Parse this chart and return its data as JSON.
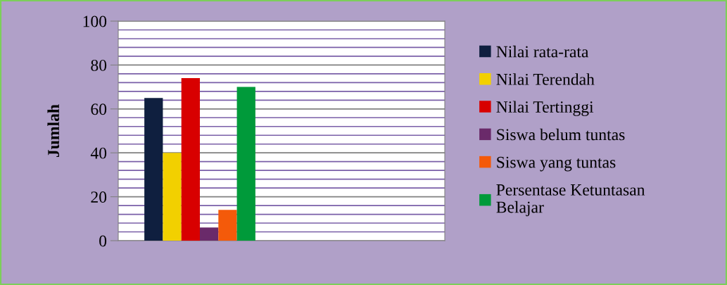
{
  "chart_data": {
    "type": "bar",
    "ylabel": "Jumlah",
    "categories": [
      null
    ],
    "series": [
      {
        "name": "Nilai rata-rata",
        "color": "#0f1f3f",
        "values": [
          65
        ]
      },
      {
        "name": "Nilai Terendah",
        "color": "#f2d000",
        "values": [
          40
        ]
      },
      {
        "name": "Nilai Tertinggi",
        "color": "#d80000",
        "values": [
          74
        ]
      },
      {
        "name": "Siswa belum tuntas",
        "color": "#6a2a6a",
        "values": [
          6
        ]
      },
      {
        "name": "Siswa yang tuntas",
        "color": "#f45a0a",
        "values": [
          14
        ]
      },
      {
        "name": "Persentase Ketuntasan\nBelajar",
        "color": "#009a3a",
        "values": [
          70
        ]
      }
    ],
    "ylim": [
      0,
      100
    ],
    "yticks": [
      0,
      {
        "value": 4,
        "label": null
      },
      {
        "value": 8,
        "label": null
      },
      {
        "value": 12,
        "label": null
      },
      {
        "value": 16,
        "label": null
      },
      20,
      {
        "value": 24,
        "label": null
      },
      {
        "value": 28,
        "label": null
      },
      {
        "value": 32,
        "label": null
      },
      {
        "value": 36,
        "label": null
      },
      40,
      {
        "value": 44,
        "label": null
      },
      {
        "value": 48,
        "label": null
      },
      {
        "value": 52,
        "label": null
      },
      {
        "value": 56,
        "label": null
      },
      60,
      {
        "value": 64,
        "label": null
      },
      {
        "value": 68,
        "label": null
      },
      {
        "value": 72,
        "label": null
      },
      {
        "value": 76,
        "label": null
      },
      80,
      {
        "value": 84,
        "label": null
      },
      {
        "value": 88,
        "label": null
      },
      {
        "value": 92,
        "label": null
      },
      {
        "value": 96,
        "label": null
      },
      100
    ],
    "grid": "y",
    "legend": "right"
  }
}
